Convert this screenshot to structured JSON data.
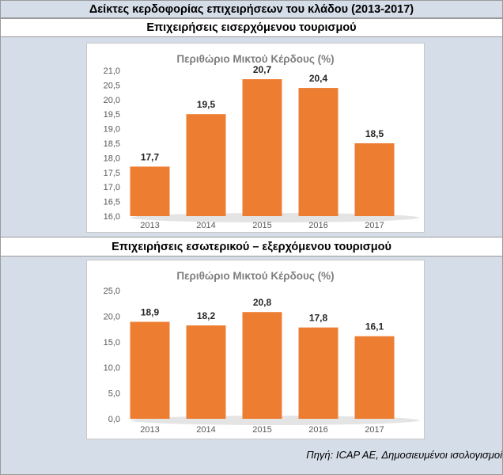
{
  "header": {
    "title": "Δείκτες κερδοφορίας επιχειρήσεων του κλάδου (2013-2017)"
  },
  "sections": [
    {
      "title": "Επιχειρήσεις εισερχόμενου τουρισμού"
    },
    {
      "title": "Επιχειρήσεις εσωτερικού – εξερχόμενου τουρισμού"
    }
  ],
  "colors": {
    "bar": "#ed7d31",
    "panel": "#d5dde8",
    "title_text": "#7f7f7f"
  },
  "chart_data": [
    {
      "type": "bar",
      "title": "Περιθώριο Μικτού Κέρδους (%)",
      "categories": [
        "2013",
        "2014",
        "2015",
        "2016",
        "2017"
      ],
      "values": [
        17.7,
        19.5,
        20.7,
        20.4,
        18.5
      ],
      "value_labels": [
        "17,7",
        "19,5",
        "20,7",
        "20,4",
        "18,5"
      ],
      "ylim": [
        16.0,
        21.0
      ],
      "yticks": [
        "16,0",
        "16,5",
        "17,0",
        "17,5",
        "18,0",
        "18,5",
        "19,0",
        "19,5",
        "20,0",
        "20,5",
        "21,0"
      ],
      "grid": false,
      "legend": "none"
    },
    {
      "type": "bar",
      "title": "Περιθώριο Μικτού Κέρδους (%)",
      "categories": [
        "2013",
        "2014",
        "2015",
        "2016",
        "2017"
      ],
      "values": [
        18.9,
        18.2,
        20.8,
        17.8,
        16.1
      ],
      "value_labels": [
        "18,9",
        "18,2",
        "20,8",
        "17,8",
        "16,1"
      ],
      "ylim": [
        0.0,
        25.0
      ],
      "yticks": [
        "0,0",
        "5,0",
        "10,0",
        "15,0",
        "20,0",
        "25,0"
      ],
      "grid": false,
      "legend": "none"
    }
  ],
  "source": {
    "text": "Πηγή: ICAP AE, Δημοσιευμένοι ισολογισμοί"
  }
}
